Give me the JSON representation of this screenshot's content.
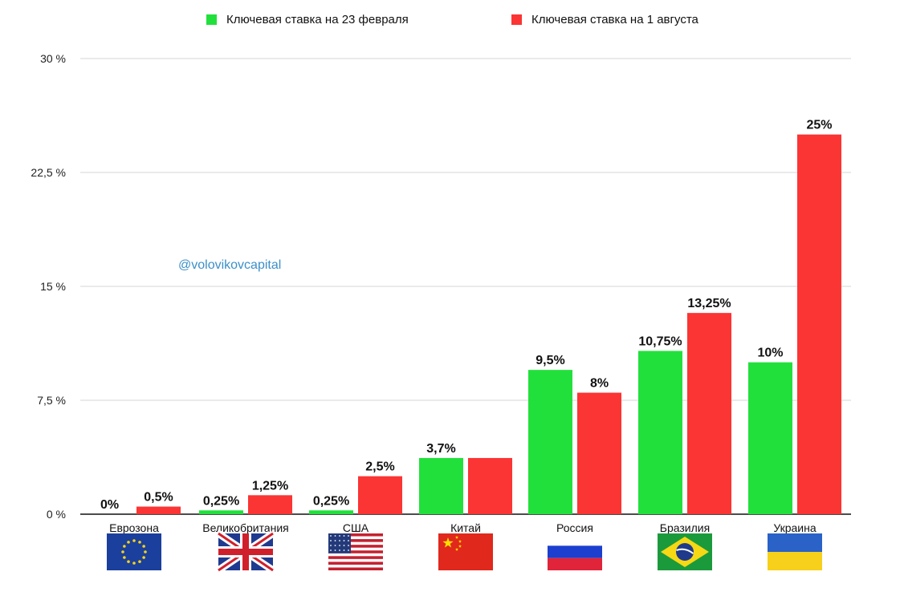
{
  "chart_data": {
    "type": "bar",
    "title": "",
    "xlabel": "",
    "ylabel": "",
    "ylim": [
      0,
      30
    ],
    "yticks": [
      0,
      7.5,
      15,
      22.5,
      30
    ],
    "ytick_labels": [
      "0 %",
      "7,5 %",
      "15 %",
      "22,5 %",
      "30 %"
    ],
    "grid": true,
    "legend_position": "top",
    "categories": [
      "Еврозона",
      "Великобритания",
      "США",
      "Китай",
      "Россия",
      "Бразилия",
      "Украина"
    ],
    "category_icons": [
      "eu-flag-icon",
      "uk-flag-icon",
      "usa-flag-icon",
      "china-flag-icon",
      "russia-flag-icon",
      "brazil-flag-icon",
      "ukraine-flag-icon"
    ],
    "series": [
      {
        "name": "Ключевая ставка на 23 февраля",
        "color": "#22e03c",
        "values": [
          0,
          0.25,
          0.25,
          3.7,
          9.5,
          10.75,
          10
        ],
        "labels": [
          "0%",
          "0,25%",
          "0,25%",
          "3,7%",
          "9,5%",
          "10,75%",
          "10%"
        ]
      },
      {
        "name": "Ключевая ставка на 1 августа",
        "color": "#fb3434",
        "values": [
          0.5,
          1.25,
          2.5,
          3.7,
          8,
          13.25,
          25
        ],
        "labels": [
          "0,5%",
          "1,25%",
          "2,5%",
          "",
          "8%",
          "13,25%",
          "25%"
        ]
      }
    ]
  },
  "watermark": "@volovikovcapital"
}
